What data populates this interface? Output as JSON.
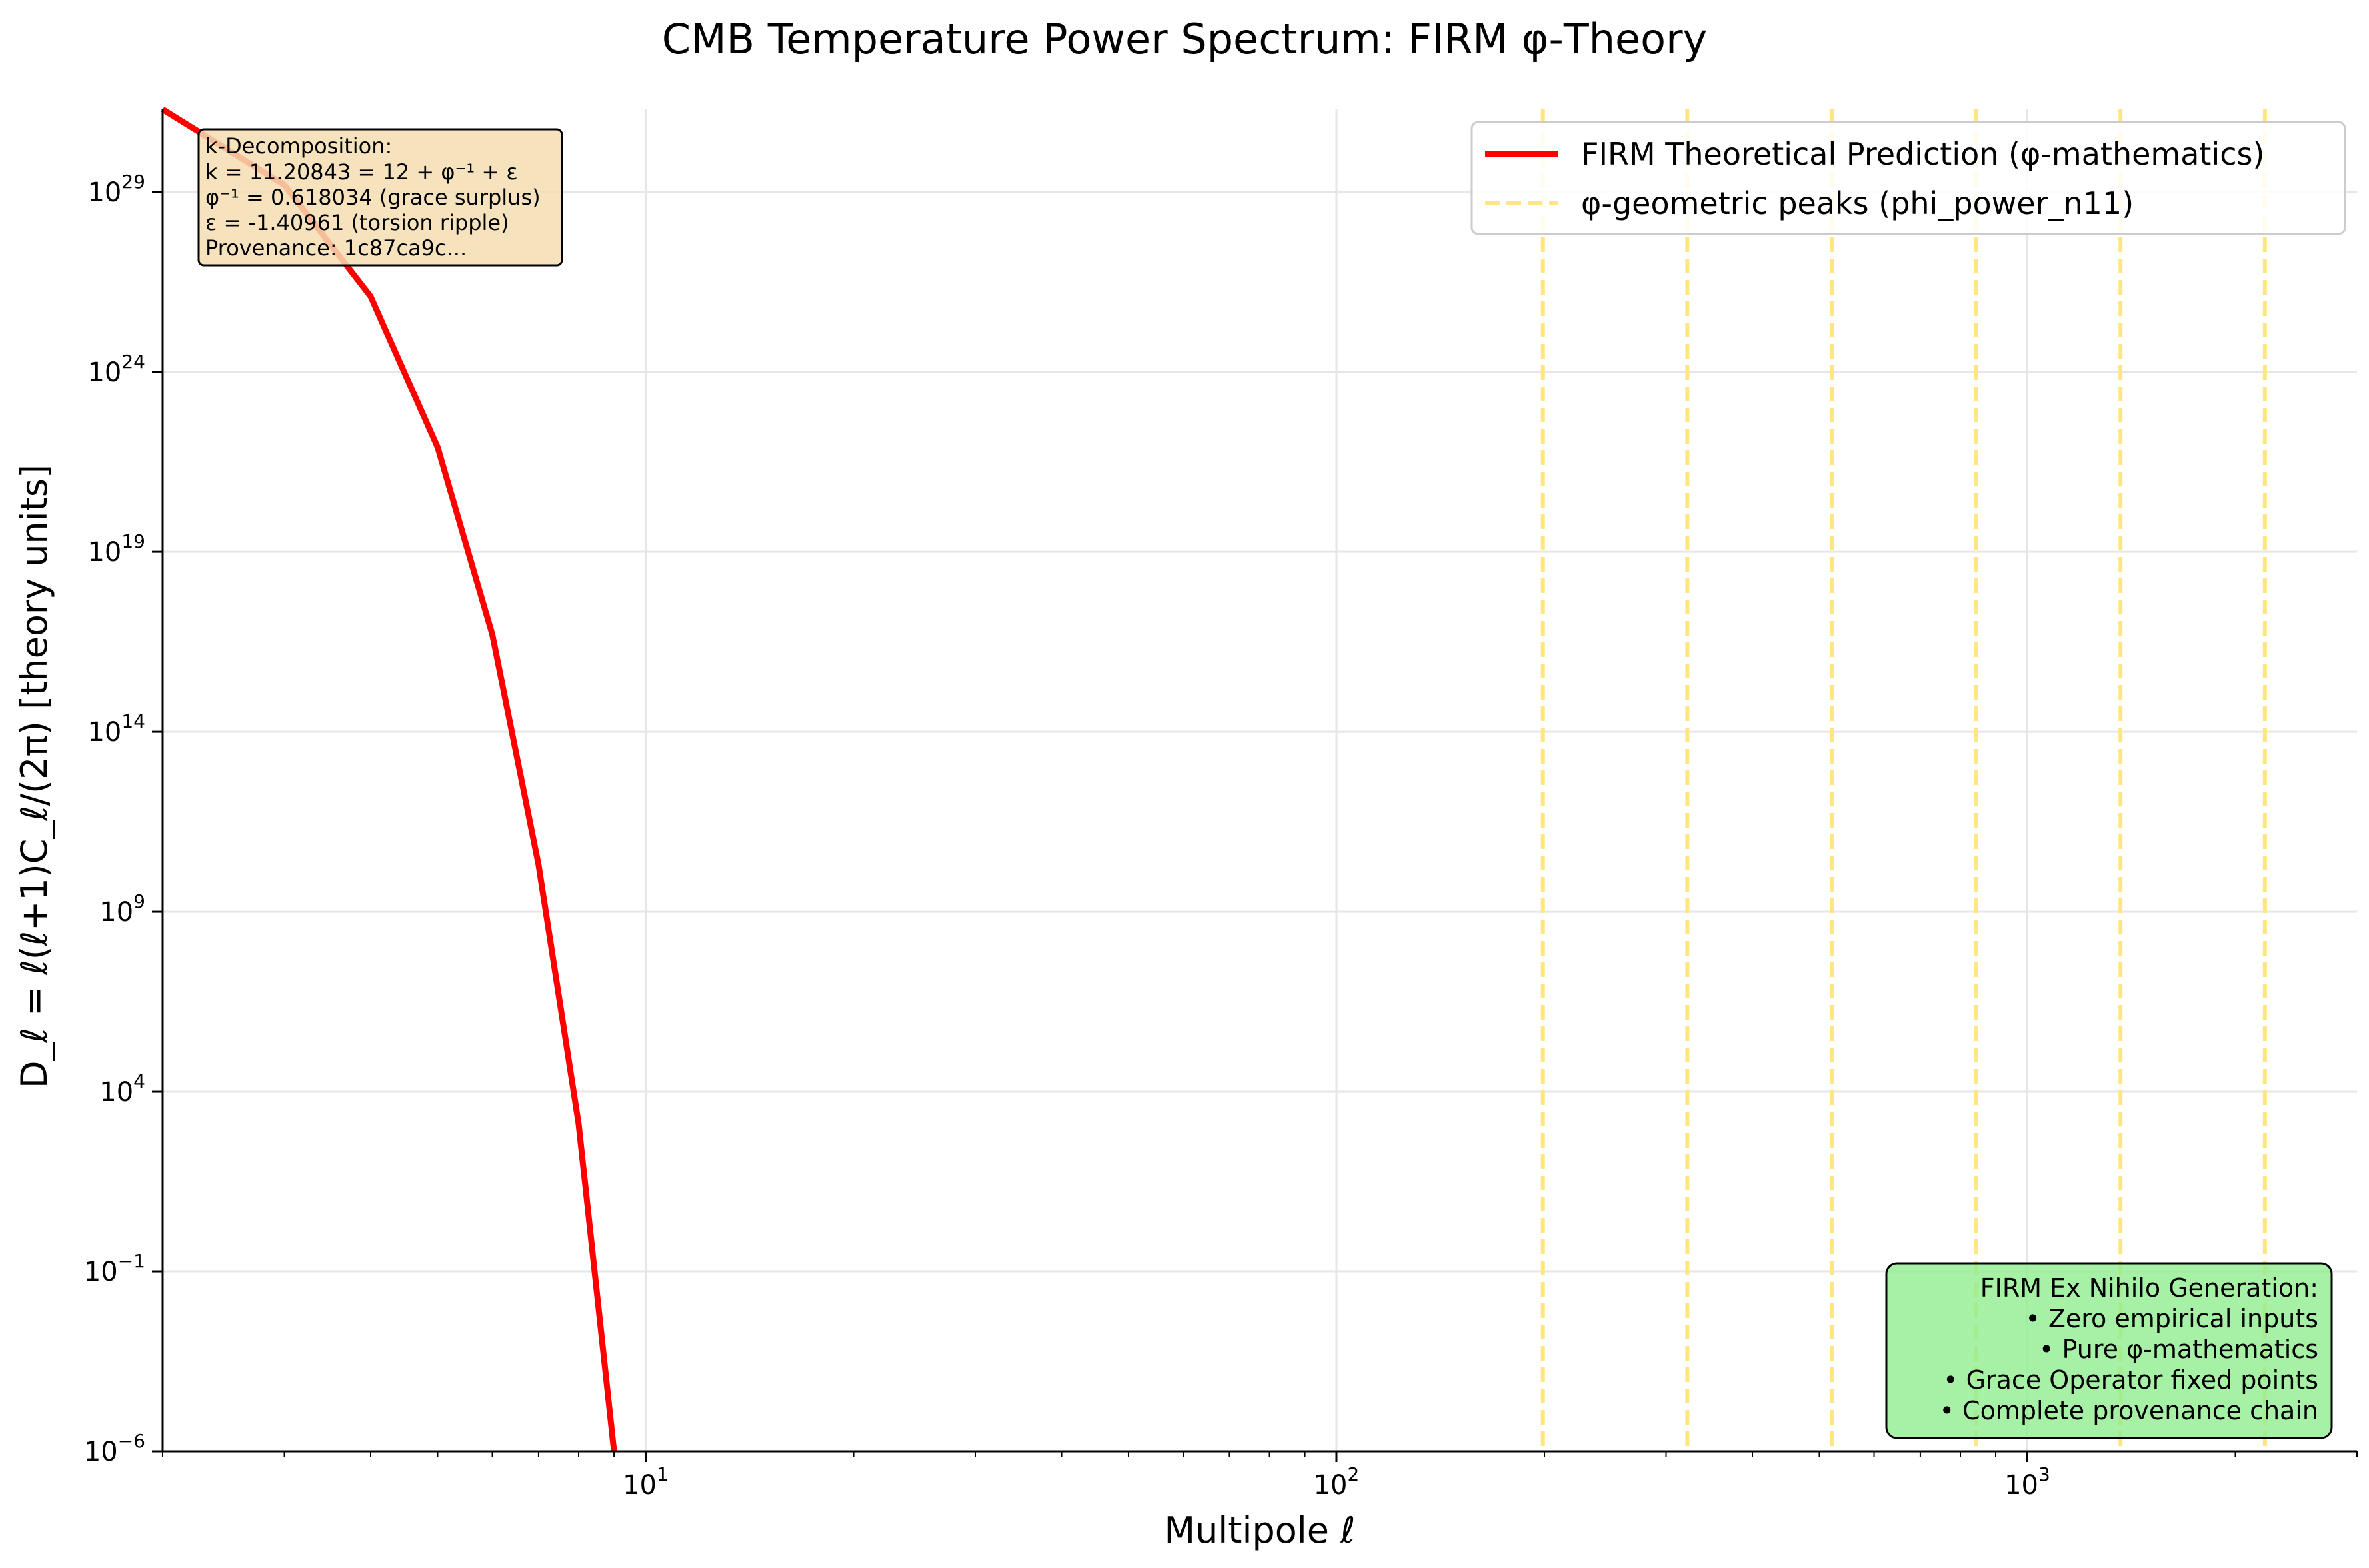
{
  "chart_data": {
    "type": "line",
    "title": "CMB Temperature Power Spectrum: FIRM φ-Theory",
    "xlabel": "Multipole ℓ",
    "ylabel": "D_ℓ = ℓ(ℓ+1)C_ℓ/(2π) [theory units]",
    "xscale": "log",
    "yscale": "log",
    "xlim": [
      2,
      3000
    ],
    "ylim_exponent": [
      -6,
      31.3
    ],
    "grid": true,
    "x_ticks": [
      {
        "base": "10",
        "exp": "1",
        "value": 10
      },
      {
        "base": "10",
        "exp": "2",
        "value": 100
      },
      {
        "base": "10",
        "exp": "3",
        "value": 1000
      }
    ],
    "y_ticks": [
      {
        "base": "10",
        "exp": "−6",
        "value": -6
      },
      {
        "base": "10",
        "exp": "−1",
        "value": -1
      },
      {
        "base": "10",
        "exp": "4",
        "value": 4
      },
      {
        "base": "10",
        "exp": "9",
        "value": 9
      },
      {
        "base": "10",
        "exp": "14",
        "value": 14
      },
      {
        "base": "10",
        "exp": "19",
        "value": 19
      },
      {
        "base": "10",
        "exp": "24",
        "value": 24
      },
      {
        "base": "10",
        "exp": "29",
        "value": 29
      }
    ],
    "series": [
      {
        "name": "FIRM Theoretical Prediction (φ-mathematics)",
        "color": "#ff0000",
        "style": "solid",
        "x": [
          2,
          3,
          4,
          5,
          6,
          7,
          8,
          9
        ],
        "log10_y": [
          31.3,
          29.2,
          26.1,
          21.9,
          16.7,
          10.3,
          3.1,
          -6.0
        ]
      }
    ],
    "vlines": {
      "name": "φ-geometric peaks (phi_power_n11)",
      "color": "#ffe680",
      "style": "dashed",
      "x": [
        199,
        322,
        521,
        843,
        1364,
        2207
      ]
    },
    "legend_position": "upper right"
  },
  "annotations": {
    "decomposition_lines": [
      "k-Decomposition:",
      "k = 11.20843 = 12 + φ⁻¹ + ε",
      "φ⁻¹ = 0.618034 (grace surplus)",
      "ε = -1.40961 (torsion ripple)",
      "Provenance: 1c87ca9c..."
    ],
    "generation_lines": [
      "FIRM Ex Nihilo Generation:",
      "• Zero empirical inputs",
      "• Pure φ-mathematics",
      "• Grace Operator fixed points",
      "• Complete provenance chain"
    ]
  },
  "colors": {
    "decomposition_box": "#f5deb3",
    "generation_box": "#90ee90",
    "grid": "#e6e6e6"
  }
}
